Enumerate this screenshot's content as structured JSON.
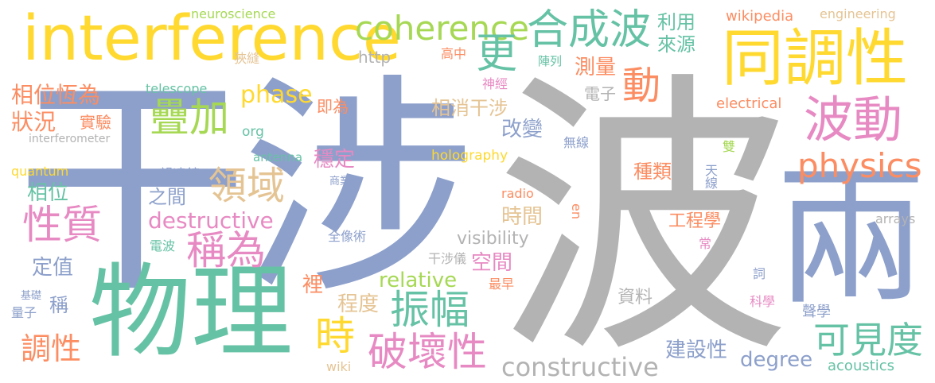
{
  "palette": {
    "green": "#66c2a5",
    "orange": "#fc8d62",
    "blue": "#8da0cb",
    "pink": "#e78ac3",
    "lime": "#a6d854",
    "yellow": "#ffd92f",
    "tan": "#e5c494",
    "gray": "#b3b3b3"
  },
  "words": {
    "ganshe": "干涉",
    "bo": "波",
    "liang": "兩",
    "wuli": "物理",
    "interference": "interference",
    "tongdiaoxing": "同調性",
    "bodong": "波動",
    "coherence": "coherence",
    "hechengbo": "合成波",
    "geng": "更",
    "dong": "動",
    "physics": "physics",
    "diejia": "疊加",
    "lingyu": "領域",
    "chengwei": "稱為",
    "xingzhi": "性質",
    "zhenfu": "振幅",
    "pohuaixing": "破壞性",
    "shi": "時",
    "kejiandu": "可見度",
    "constructive": "constructive",
    "destructive": "destructive",
    "phase": "phase",
    "relative": "relative",
    "diaoxing": "調性",
    "xiangweihengwei": "相位恆為",
    "zhuangkuang": "狀況",
    "shiyan": "實驗",
    "xiangwei": "相位",
    "dingzhi": "定值",
    "cheng": "稱",
    "jichu": "基礎",
    "liangzi": "量子",
    "neuroscience": "neuroscience",
    "http": "http",
    "xiafeng": "狹縫",
    "jiwei": "即為",
    "org": "org",
    "telescope": "telescope",
    "interferometer": "interferometer",
    "quantum": "quantum",
    "wangyuanjing": "望遠鏡",
    "antenna": "antenna",
    "wending": "穩定",
    "shangye": "商業",
    "zhijian": "之間",
    "quanxiangshu": "全像術",
    "dianbo": "電波",
    "li": "裡",
    "chengdu": "程度",
    "ganshieyi": "干涉儀",
    "gaozhong": "高中",
    "zhenlie": "陣列",
    "shenjing": "神經",
    "xiangxiaoganshe": "相消干涉",
    "gaibian": "改變",
    "holography": "holography",
    "radio": "radio",
    "en": "en",
    "shijian": "時間",
    "kongjian": "空間",
    "zuizao": "最早",
    "visibility": "visibility",
    "ziliao": "資料",
    "wiki": "wiki",
    "jianshexing": "建設性",
    "degree": "degree",
    "acoustics": "acoustics",
    "liyong": "利用",
    "laiyuan": "來源",
    "celiang": "測量",
    "dianzi": "電子",
    "wikipedia": "wikipedia",
    "engineering": "engineering",
    "electrical": "electrical",
    "wuxian": "無線",
    "shuang": "雙",
    "zhonglei": "種類",
    "tianxian": "天線",
    "gongchengxue": "工程學",
    "chang": "常",
    "arrays": "arrays",
    "ci": "詞",
    "kexue": "科學",
    "shengxue": "聲學"
  }
}
